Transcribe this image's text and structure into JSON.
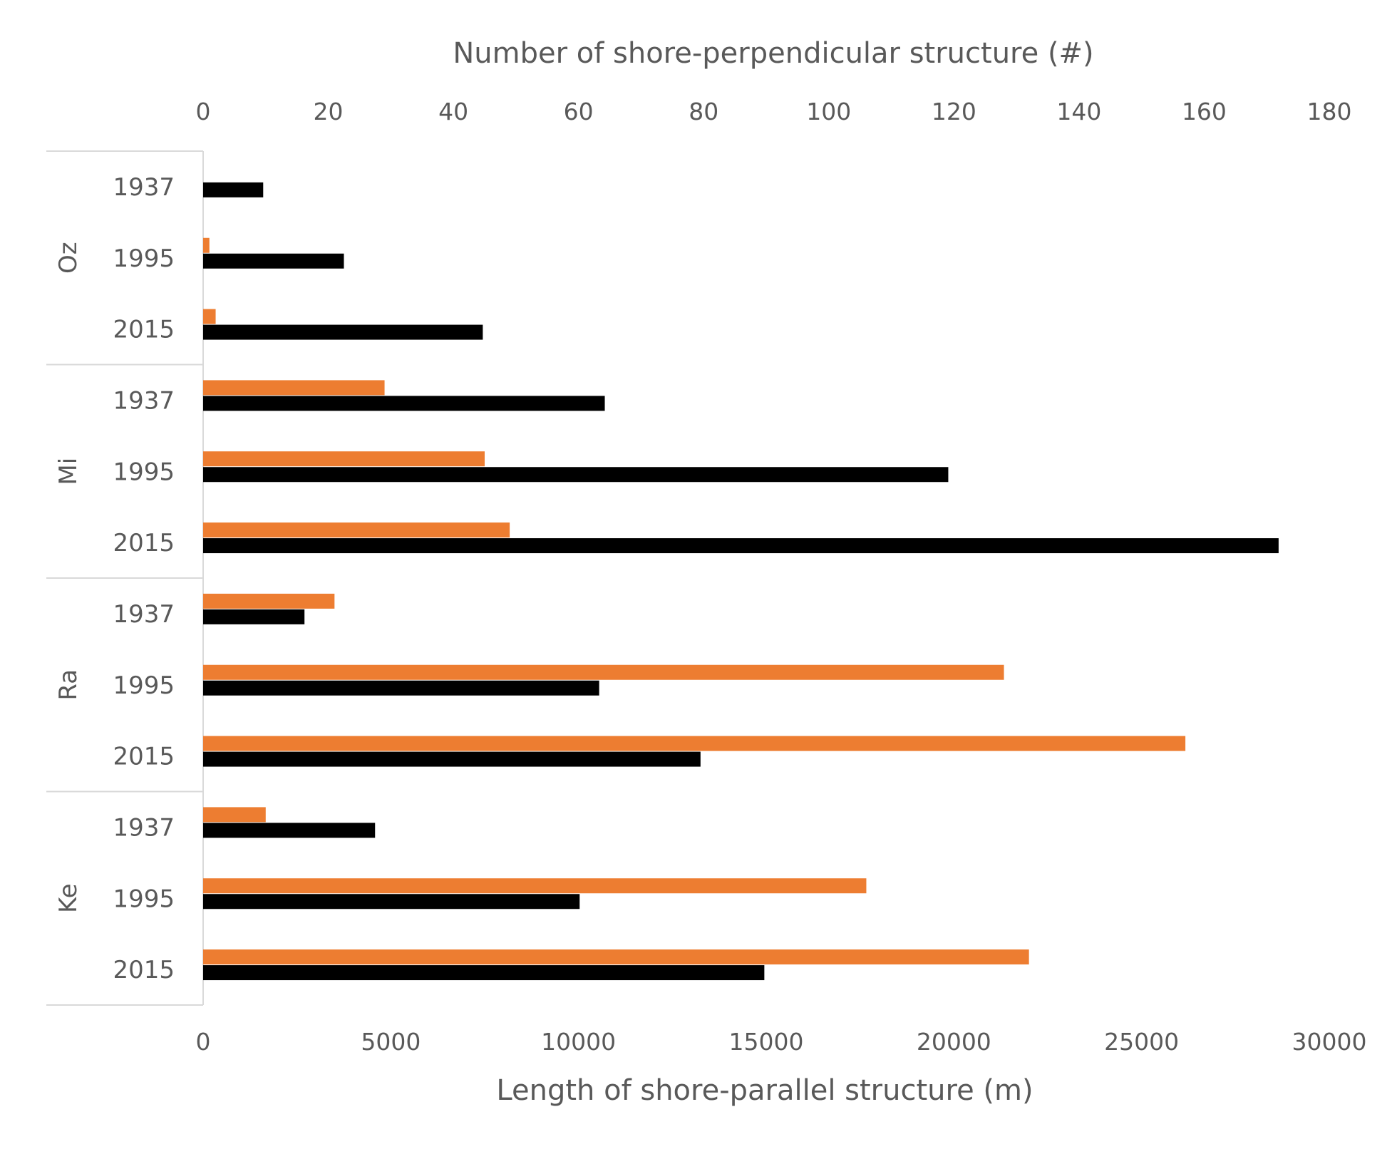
{
  "chart_data": {
    "type": "bar",
    "orientation": "horizontal",
    "title": "",
    "xlabel_bottom": "Length of shore-parallel structure (m)",
    "xlabel_top": "Number of shore-perpendicular structure (#)",
    "xlim_bottom": [
      0,
      30000
    ],
    "xlim_top": [
      0,
      180
    ],
    "xticks_bottom": [
      "0",
      "5000",
      "10000",
      "15000",
      "20000",
      "25000",
      "30000"
    ],
    "xticks_top": [
      "0",
      "20",
      "40",
      "60",
      "80",
      "100",
      "120",
      "140",
      "160",
      "180"
    ],
    "grid": false,
    "legend": "none",
    "groups": [
      {
        "name": "Oz",
        "categories": [
          "1937",
          "1995",
          "2015"
        ]
      },
      {
        "name": "Mi",
        "categories": [
          "1937",
          "1995",
          "2015"
        ]
      },
      {
        "name": "Ra",
        "categories": [
          "1937",
          "1995",
          "2015"
        ]
      },
      {
        "name": "Ke",
        "categories": [
          "1937",
          "1995",
          "2015"
        ]
      }
    ],
    "series": [
      {
        "axis": "top",
        "color": "#ED7D31",
        "values": [
          0,
          1,
          2,
          29,
          45,
          49,
          21,
          128,
          157,
          10,
          106,
          132
        ]
      },
      {
        "axis": "bottom",
        "color": "#000000",
        "values": [
          1600,
          3750,
          7450,
          10700,
          19850,
          28650,
          2700,
          10550,
          13250,
          4580,
          10030,
          14950
        ]
      }
    ]
  }
}
